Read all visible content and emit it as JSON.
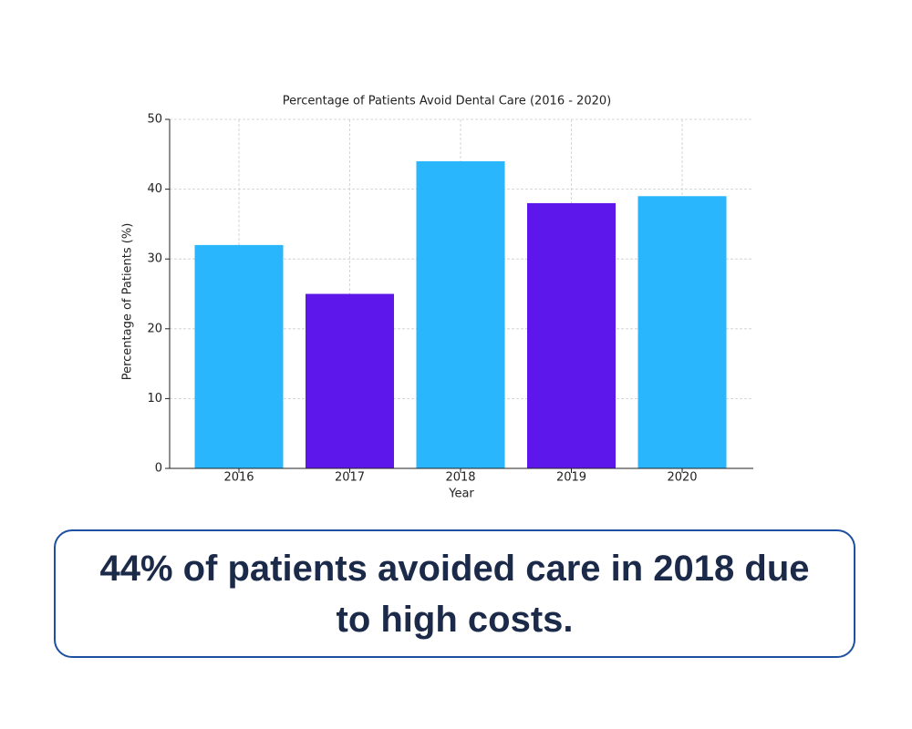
{
  "chart_data": {
    "type": "bar",
    "title": "Percentage of Patients Avoid Dental Care (2016 - 2020)",
    "x_label": "Year",
    "y_label": "Percentage of Patients (%)",
    "categories": [
      "2016",
      "2017",
      "2018",
      "2019",
      "2020"
    ],
    "values": [
      32,
      25,
      44,
      38,
      39
    ],
    "colors": [
      "#29b6fd",
      "#5e17eb",
      "#29b6fd",
      "#5e17eb",
      "#29b6fd"
    ],
    "ylim": [
      0,
      50
    ],
    "yticks": [
      0,
      10,
      20,
      30,
      40,
      50
    ],
    "grid": true
  },
  "callout": "44% of patients avoided care in 2018 due to high costs."
}
